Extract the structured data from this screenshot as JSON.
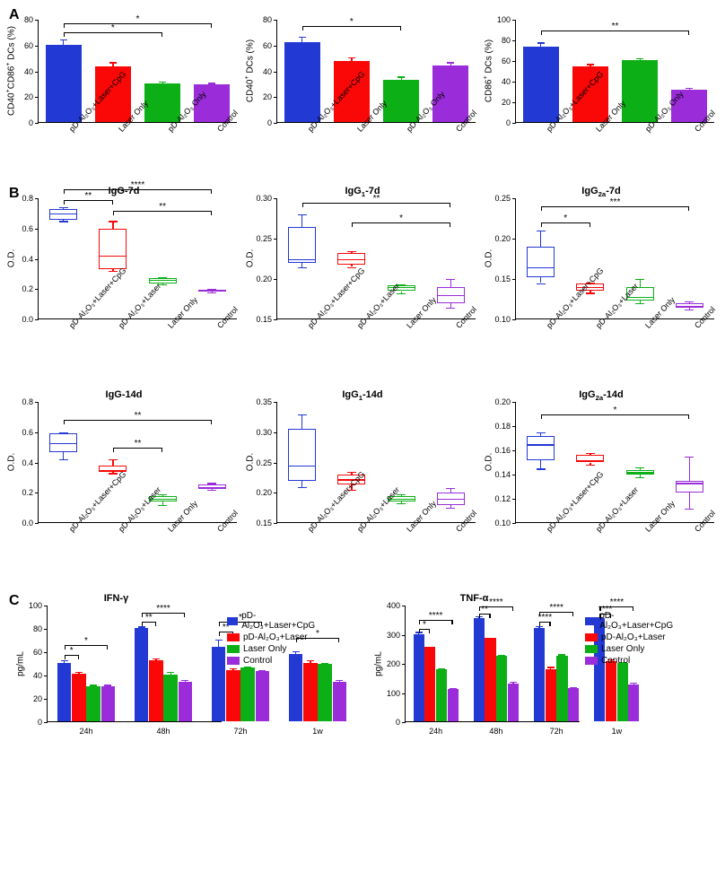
{
  "colors": {
    "blue": "#2339d4",
    "red": "#fa0808",
    "green": "#0cb016",
    "purple": "#9a2dd9",
    "black": "#000000"
  },
  "groups": [
    "pD-Al₂O₃+Laser+CpG",
    "Laser Only",
    "pD-Al₂O₃ Only",
    "Control"
  ],
  "groupsB": [
    "pD-Al₂O₃+Laser+CpG",
    "pD-Al₂O₃+Laser",
    "Laser Only",
    "Control"
  ],
  "legendC": [
    "pD-Al₂O₃+Laser+CpG",
    "pD-Al₂O₃+Laser",
    "Laser Only",
    "Control"
  ],
  "panelA": {
    "ylabelSuffix": " DCs (%)",
    "charts": [
      {
        "ylabelHTML": "CD40<sup>+</sup>CD86<sup>+</sup> DCs (%)",
        "ylim": [
          0,
          80
        ],
        "ytick": 20,
        "bars": [
          {
            "v": 60,
            "e": 5,
            "c": "blue"
          },
          {
            "v": 43,
            "e": 4,
            "c": "red"
          },
          {
            "v": 30,
            "e": 2,
            "c": "green"
          },
          {
            "v": 29,
            "e": 2,
            "c": "purple"
          }
        ],
        "sig": [
          {
            "from": 0,
            "to": 2,
            "y": 70,
            "t": "*"
          },
          {
            "from": 0,
            "to": 3,
            "y": 77,
            "t": "*"
          }
        ]
      },
      {
        "ylabelHTML": "CD40<sup>+</sup> DCs (%)",
        "ylim": [
          0,
          80
        ],
        "ytick": 20,
        "bars": [
          {
            "v": 62,
            "e": 5,
            "c": "blue"
          },
          {
            "v": 47,
            "e": 4,
            "c": "red"
          },
          {
            "v": 33,
            "e": 3,
            "c": "green"
          },
          {
            "v": 44,
            "e": 3,
            "c": "purple"
          }
        ],
        "sig": [
          {
            "from": 0,
            "to": 2,
            "y": 75,
            "t": "*"
          }
        ]
      },
      {
        "ylabelHTML": "CD86<sup>+</sup> DCs (%)",
        "ylim": [
          0,
          100
        ],
        "ytick": 20,
        "bars": [
          {
            "v": 73,
            "e": 5,
            "c": "blue"
          },
          {
            "v": 54,
            "e": 3,
            "c": "red"
          },
          {
            "v": 60,
            "e": 3,
            "c": "green"
          },
          {
            "v": 31,
            "e": 3,
            "c": "purple"
          }
        ],
        "sig": [
          {
            "from": 0,
            "to": 3,
            "y": 90,
            "t": "**"
          }
        ]
      }
    ]
  },
  "panelB": {
    "ylabel": "O.D.",
    "charts": [
      {
        "title": "IgG-7d",
        "ylim": [
          0.0,
          0.8
        ],
        "ytick": 0.2,
        "boxes": [
          {
            "lo": 0.65,
            "q1": 0.66,
            "med": 0.7,
            "q3": 0.73,
            "hi": 0.74,
            "c": "blue"
          },
          {
            "lo": 0.32,
            "q1": 0.33,
            "med": 0.42,
            "q3": 0.6,
            "hi": 0.65,
            "c": "red"
          },
          {
            "lo": 0.23,
            "q1": 0.24,
            "med": 0.26,
            "q3": 0.27,
            "hi": 0.28,
            "c": "green"
          },
          {
            "lo": 0.18,
            "q1": 0.185,
            "med": 0.19,
            "q3": 0.195,
            "hi": 0.2,
            "c": "purple"
          }
        ],
        "sig": [
          {
            "from": 0,
            "to": 1,
            "y": 0.79,
            "t": "**"
          },
          {
            "from": 1,
            "to": 3,
            "y": 0.72,
            "t": "**"
          },
          {
            "from": 0,
            "to": 3,
            "y": 0.86,
            "t": "****"
          }
        ]
      },
      {
        "title": "IgG₁-7d",
        "ylim": [
          0.15,
          0.3
        ],
        "ytick": 0.05,
        "boxes": [
          {
            "lo": 0.215,
            "q1": 0.22,
            "med": 0.225,
            "q3": 0.265,
            "hi": 0.28,
            "c": "blue"
          },
          {
            "lo": 0.215,
            "q1": 0.218,
            "med": 0.225,
            "q3": 0.232,
            "hi": 0.235,
            "c": "red"
          },
          {
            "lo": 0.182,
            "q1": 0.185,
            "med": 0.19,
            "q3": 0.192,
            "hi": 0.193,
            "c": "green"
          },
          {
            "lo": 0.165,
            "q1": 0.17,
            "med": 0.18,
            "q3": 0.19,
            "hi": 0.2,
            "c": "purple"
          }
        ],
        "sig": [
          {
            "from": 1,
            "to": 3,
            "y": 0.27,
            "t": "*"
          },
          {
            "from": 0,
            "to": 3,
            "y": 0.295,
            "t": "**"
          }
        ]
      },
      {
        "title": "IgG₂ₐ-7d",
        "ylim": [
          0.1,
          0.25
        ],
        "ytick": 0.05,
        "boxes": [
          {
            "lo": 0.145,
            "q1": 0.152,
            "med": 0.165,
            "q3": 0.19,
            "hi": 0.21,
            "c": "blue"
          },
          {
            "lo": 0.133,
            "q1": 0.136,
            "med": 0.14,
            "q3": 0.144,
            "hi": 0.146,
            "c": "red"
          },
          {
            "lo": 0.12,
            "q1": 0.123,
            "med": 0.128,
            "q3": 0.14,
            "hi": 0.15,
            "c": "green"
          },
          {
            "lo": 0.112,
            "q1": 0.114,
            "med": 0.117,
            "q3": 0.12,
            "hi": 0.122,
            "c": "purple"
          }
        ],
        "sig": [
          {
            "from": 0,
            "to": 1,
            "y": 0.22,
            "t": "*"
          },
          {
            "from": 0,
            "to": 3,
            "y": 0.24,
            "t": "***"
          }
        ]
      },
      {
        "title": "IgG-14d",
        "ylim": [
          0.0,
          0.8
        ],
        "ytick": 0.2,
        "boxes": [
          {
            "lo": 0.42,
            "q1": 0.47,
            "med": 0.53,
            "q3": 0.59,
            "hi": 0.6,
            "c": "blue"
          },
          {
            "lo": 0.33,
            "q1": 0.34,
            "med": 0.35,
            "q3": 0.38,
            "hi": 0.42,
            "c": "red"
          },
          {
            "lo": 0.12,
            "q1": 0.14,
            "med": 0.16,
            "q3": 0.18,
            "hi": 0.19,
            "c": "green"
          },
          {
            "lo": 0.22,
            "q1": 0.225,
            "med": 0.24,
            "q3": 0.255,
            "hi": 0.265,
            "c": "purple"
          }
        ],
        "sig": [
          {
            "from": 1,
            "to": 2,
            "y": 0.5,
            "t": "**"
          },
          {
            "from": 0,
            "to": 3,
            "y": 0.68,
            "t": "**"
          }
        ]
      },
      {
        "title": "IgG₁-14d",
        "ylim": [
          0.15,
          0.35
        ],
        "ytick": 0.05,
        "boxes": [
          {
            "lo": 0.21,
            "q1": 0.22,
            "med": 0.245,
            "q3": 0.305,
            "hi": 0.33,
            "c": "blue"
          },
          {
            "lo": 0.205,
            "q1": 0.213,
            "med": 0.222,
            "q3": 0.23,
            "hi": 0.235,
            "c": "red"
          },
          {
            "lo": 0.183,
            "q1": 0.186,
            "med": 0.19,
            "q3": 0.195,
            "hi": 0.198,
            "c": "green"
          },
          {
            "lo": 0.175,
            "q1": 0.18,
            "med": 0.19,
            "q3": 0.2,
            "hi": 0.208,
            "c": "purple"
          }
        ],
        "sig": []
      },
      {
        "title": "IgG₂ₐ-14d",
        "ylim": [
          0.1,
          0.2
        ],
        "ytick": 0.02,
        "boxes": [
          {
            "lo": 0.145,
            "q1": 0.152,
            "med": 0.165,
            "q3": 0.172,
            "hi": 0.175,
            "c": "blue"
          },
          {
            "lo": 0.148,
            "q1": 0.15,
            "med": 0.152,
            "q3": 0.156,
            "hi": 0.158,
            "c": "red"
          },
          {
            "lo": 0.138,
            "q1": 0.14,
            "med": 0.142,
            "q3": 0.144,
            "hi": 0.146,
            "c": "green"
          },
          {
            "lo": 0.112,
            "q1": 0.125,
            "med": 0.133,
            "q3": 0.135,
            "hi": 0.155,
            "c": "purple"
          }
        ],
        "sig": [
          {
            "from": 0,
            "to": 3,
            "y": 0.19,
            "t": "*"
          }
        ]
      }
    ]
  },
  "panelC": {
    "ylabel": "pg/mL",
    "timepoints": [
      "24h",
      "48h",
      "72h",
      "1w"
    ],
    "seriesColors": [
      "blue",
      "red",
      "green",
      "purple"
    ],
    "charts": [
      {
        "title": "IFN-γ",
        "ylim": [
          0,
          100
        ],
        "ytick": 20,
        "data": [
          [
            {
              "v": 50,
              "e": 3
            },
            {
              "v": 41,
              "e": 2
            },
            {
              "v": 30,
              "e": 2
            },
            {
              "v": 30,
              "e": 2
            }
          ],
          [
            {
              "v": 80,
              "e": 2
            },
            {
              "v": 52,
              "e": 3
            },
            {
              "v": 40,
              "e": 3
            },
            {
              "v": 34,
              "e": 2
            }
          ],
          [
            {
              "v": 64,
              "e": 7
            },
            {
              "v": 44,
              "e": 2
            },
            {
              "v": 46,
              "e": 2
            },
            {
              "v": 43,
              "e": 2
            }
          ],
          [
            {
              "v": 58,
              "e": 3
            },
            {
              "v": 50,
              "e": 3
            },
            {
              "v": 49,
              "e": 2
            },
            {
              "v": 34,
              "e": 2
            }
          ]
        ],
        "sig": [
          {
            "tp": 0,
            "from": 0,
            "to": 1,
            "y": 58,
            "t": "*"
          },
          {
            "tp": 0,
            "from": 0,
            "to": 3,
            "y": 66,
            "t": "*"
          },
          {
            "tp": 1,
            "from": 0,
            "to": 1,
            "y": 86,
            "t": "**"
          },
          {
            "tp": 1,
            "from": 0,
            "to": 3,
            "y": 94,
            "t": "****"
          },
          {
            "tp": 2,
            "from": 0,
            "to": 1,
            "y": 78,
            "t": "**"
          },
          {
            "tp": 2,
            "from": 0,
            "to": 3,
            "y": 86,
            "t": "*"
          },
          {
            "tp": 3,
            "from": 0,
            "to": 3,
            "y": 72,
            "t": "*"
          }
        ]
      },
      {
        "title": "TNF-α",
        "ylim": [
          0,
          400
        ],
        "ytick": 100,
        "data": [
          [
            {
              "v": 300,
              "e": 10
            },
            {
              "v": 255,
              "e": 5
            },
            {
              "v": 180,
              "e": 5
            },
            {
              "v": 110,
              "e": 8
            }
          ],
          [
            {
              "v": 355,
              "e": 8
            },
            {
              "v": 285,
              "e": 5
            },
            {
              "v": 225,
              "e": 6
            },
            {
              "v": 130,
              "e": 8
            }
          ],
          [
            {
              "v": 320,
              "e": 10
            },
            {
              "v": 180,
              "e": 10
            },
            {
              "v": 225,
              "e": 8
            },
            {
              "v": 115,
              "e": 5
            }
          ],
          [
            {
              "v": 355,
              "e": 6
            },
            {
              "v": 205,
              "e": 10
            },
            {
              "v": 200,
              "e": 5
            },
            {
              "v": 125,
              "e": 10
            }
          ]
        ],
        "sig": [
          {
            "tp": 0,
            "from": 0,
            "to": 1,
            "y": 320,
            "t": "*"
          },
          {
            "tp": 0,
            "from": 0,
            "to": 3,
            "y": 350,
            "t": "****"
          },
          {
            "tp": 1,
            "from": 0,
            "to": 1,
            "y": 372,
            "t": "**"
          },
          {
            "tp": 1,
            "from": 0,
            "to": 3,
            "y": 398,
            "t": "****"
          },
          {
            "tp": 2,
            "from": 0,
            "to": 1,
            "y": 345,
            "t": "****"
          },
          {
            "tp": 2,
            "from": 0,
            "to": 3,
            "y": 378,
            "t": "****"
          },
          {
            "tp": 3,
            "from": 0,
            "to": 1,
            "y": 372,
            "t": "****"
          },
          {
            "tp": 3,
            "from": 0,
            "to": 3,
            "y": 398,
            "t": "****"
          }
        ]
      }
    ]
  },
  "style": {
    "barWidthFrac": 0.62,
    "boxWidthFrac": 0.45,
    "errCapW": 8,
    "fontAxis": 10
  }
}
